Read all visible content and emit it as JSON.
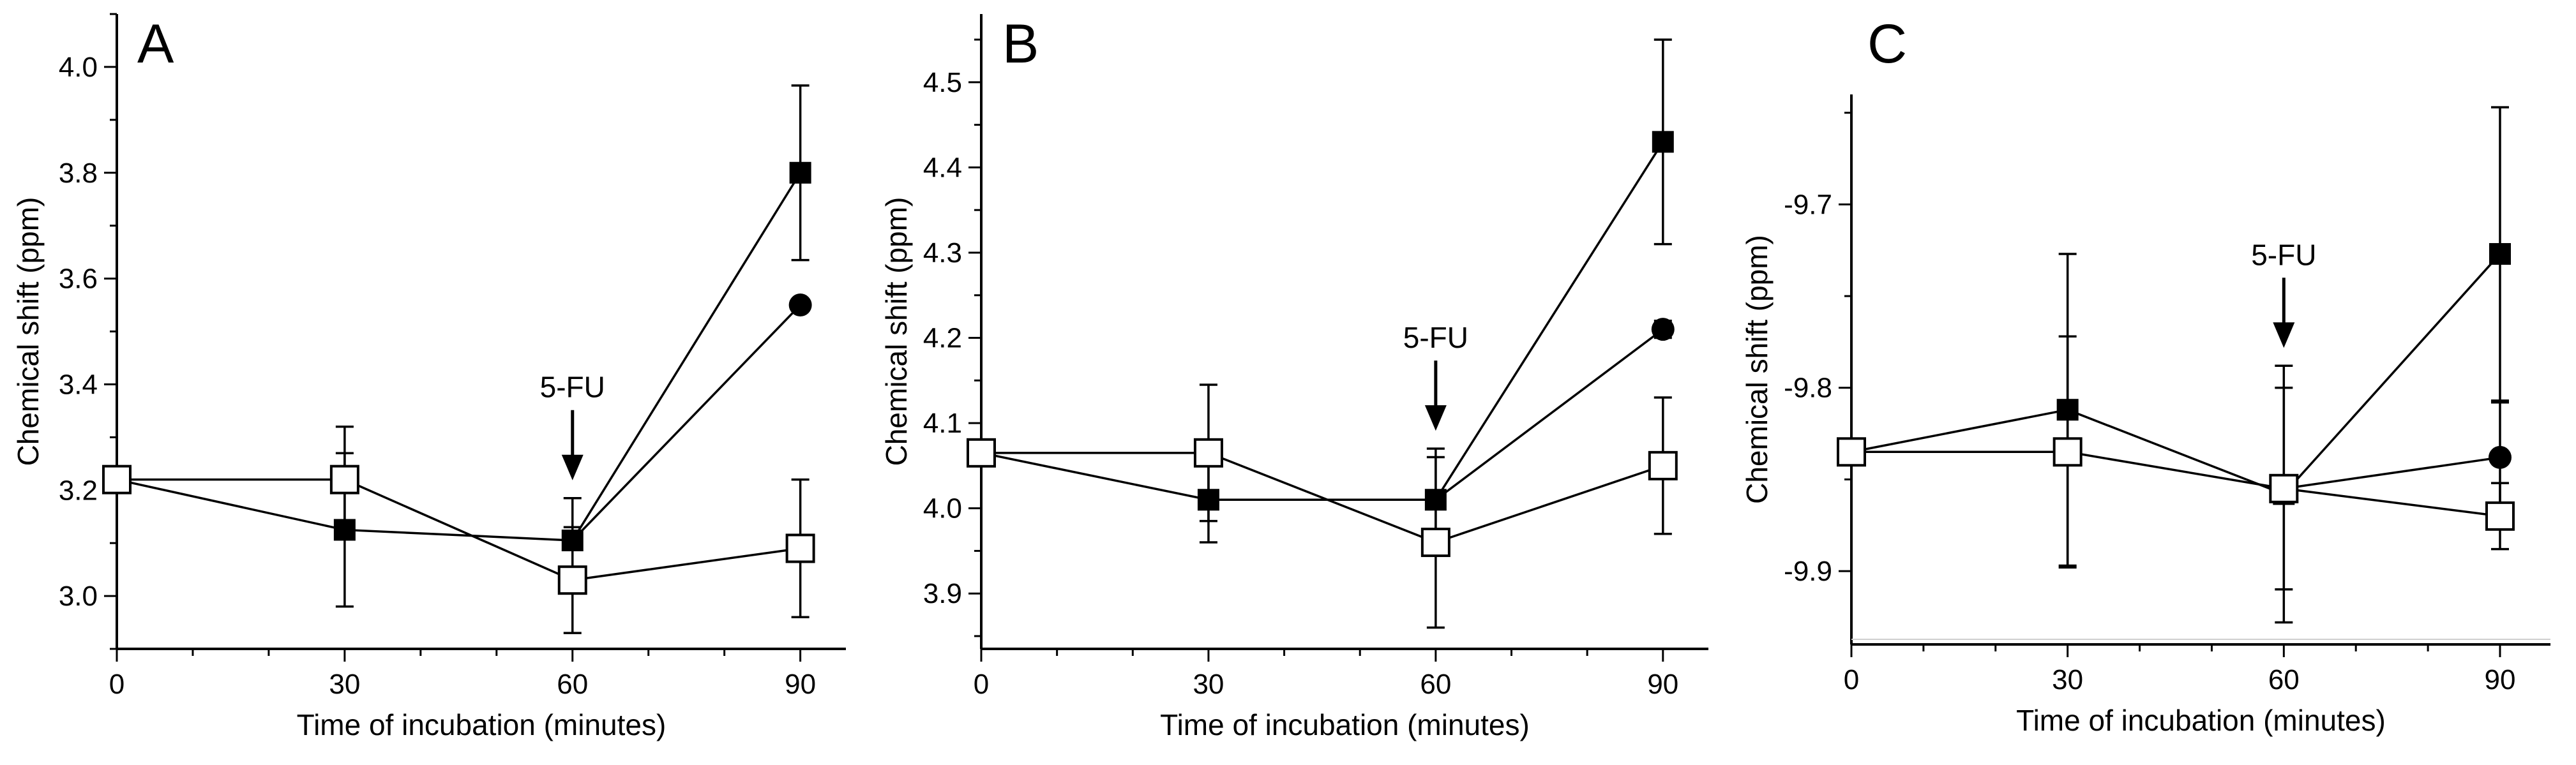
{
  "chart_data": [
    {
      "panel": "A",
      "type": "line",
      "xlabel": "Time of incubation (minutes)",
      "ylabel": "Chemical shift (ppm)",
      "xlim": [
        0,
        96
      ],
      "ylim": [
        2.9,
        4.1
      ],
      "xticks": [
        0,
        30,
        60,
        90
      ],
      "yticks": [
        3.0,
        3.2,
        3.4,
        3.6,
        3.8,
        4.0
      ],
      "ytick_labels": [
        "3.0",
        "3.2",
        "3.4",
        "3.6",
        "3.8",
        "4.0"
      ],
      "annotation": {
        "text": "5-FU",
        "x": 60
      },
      "series": [
        {
          "marker": "filled-square",
          "x": [
            0,
            30,
            60,
            90
          ],
          "y": [
            3.22,
            3.125,
            3.105,
            3.8
          ],
          "err": [
            0,
            0.145,
            0.08,
            0.165
          ]
        },
        {
          "marker": "filled-circle",
          "x": [
            60,
            90
          ],
          "y": [
            3.105,
            3.55
          ],
          "err": [
            0,
            0
          ]
        },
        {
          "marker": "open-square",
          "x": [
            0,
            30,
            60,
            90
          ],
          "y": [
            3.22,
            3.22,
            3.03,
            3.09
          ],
          "err": [
            0,
            0.1,
            0.1,
            0.13
          ]
        }
      ]
    },
    {
      "panel": "B",
      "type": "line",
      "xlabel": "Time of incubation (minutes)",
      "ylabel": "Chemical shift (ppm)",
      "xlim": [
        0,
        96
      ],
      "ylim": [
        3.835,
        4.58
      ],
      "xticks": [
        0,
        30,
        60,
        90
      ],
      "yticks": [
        3.9,
        4.0,
        4.1,
        4.2,
        4.3,
        4.4,
        4.5
      ],
      "ytick_labels": [
        "3.9",
        "4.0",
        "4.1",
        "4.2",
        "4.3",
        "4.4",
        "4.5"
      ],
      "annotation": {
        "text": "5-FU",
        "x": 60
      },
      "series": [
        {
          "marker": "filled-square",
          "x": [
            0,
            30,
            60,
            90
          ],
          "y": [
            4.065,
            4.01,
            4.01,
            4.43
          ],
          "err": [
            0,
            0.05,
            0.06,
            0.12
          ]
        },
        {
          "marker": "filled-circle",
          "x": [
            60,
            90
          ],
          "y": [
            4.01,
            4.21
          ],
          "err": [
            0,
            0.01
          ]
        },
        {
          "marker": "open-square",
          "x": [
            0,
            30,
            60,
            90
          ],
          "y": [
            4.065,
            4.065,
            3.96,
            4.05
          ],
          "err": [
            0,
            0.08,
            0.1,
            0.08
          ]
        }
      ]
    },
    {
      "panel": "C",
      "type": "line",
      "xlabel": "Time of incubation (minutes)",
      "ylabel": "Chemical shift (ppm)",
      "xlim": [
        0,
        97
      ],
      "ylim": [
        -9.94,
        -9.64
      ],
      "xticks": [
        0,
        30,
        60,
        90
      ],
      "yticks": [
        -9.9,
        -9.8,
        -9.7
      ],
      "ytick_labels": [
        "-9.9",
        "-9.8",
        "-9.7"
      ],
      "annotation": {
        "text": "5-FU",
        "x": 60
      },
      "series": [
        {
          "marker": "filled-square",
          "x": [
            0,
            30,
            60,
            90
          ],
          "y": [
            -9.835,
            -9.812,
            -9.858,
            -9.727
          ],
          "err": [
            0,
            0.085,
            0.07,
            0.08
          ]
        },
        {
          "marker": "filled-circle",
          "x": [
            60,
            90
          ],
          "y": [
            -9.855,
            -9.838
          ],
          "err": [
            0,
            0.03
          ]
        },
        {
          "marker": "open-square",
          "x": [
            0,
            30,
            60,
            90
          ],
          "y": [
            -9.835,
            -9.835,
            -9.855,
            -9.87
          ],
          "err": [
            0,
            0.063,
            0.055,
            0.018
          ]
        }
      ]
    }
  ]
}
